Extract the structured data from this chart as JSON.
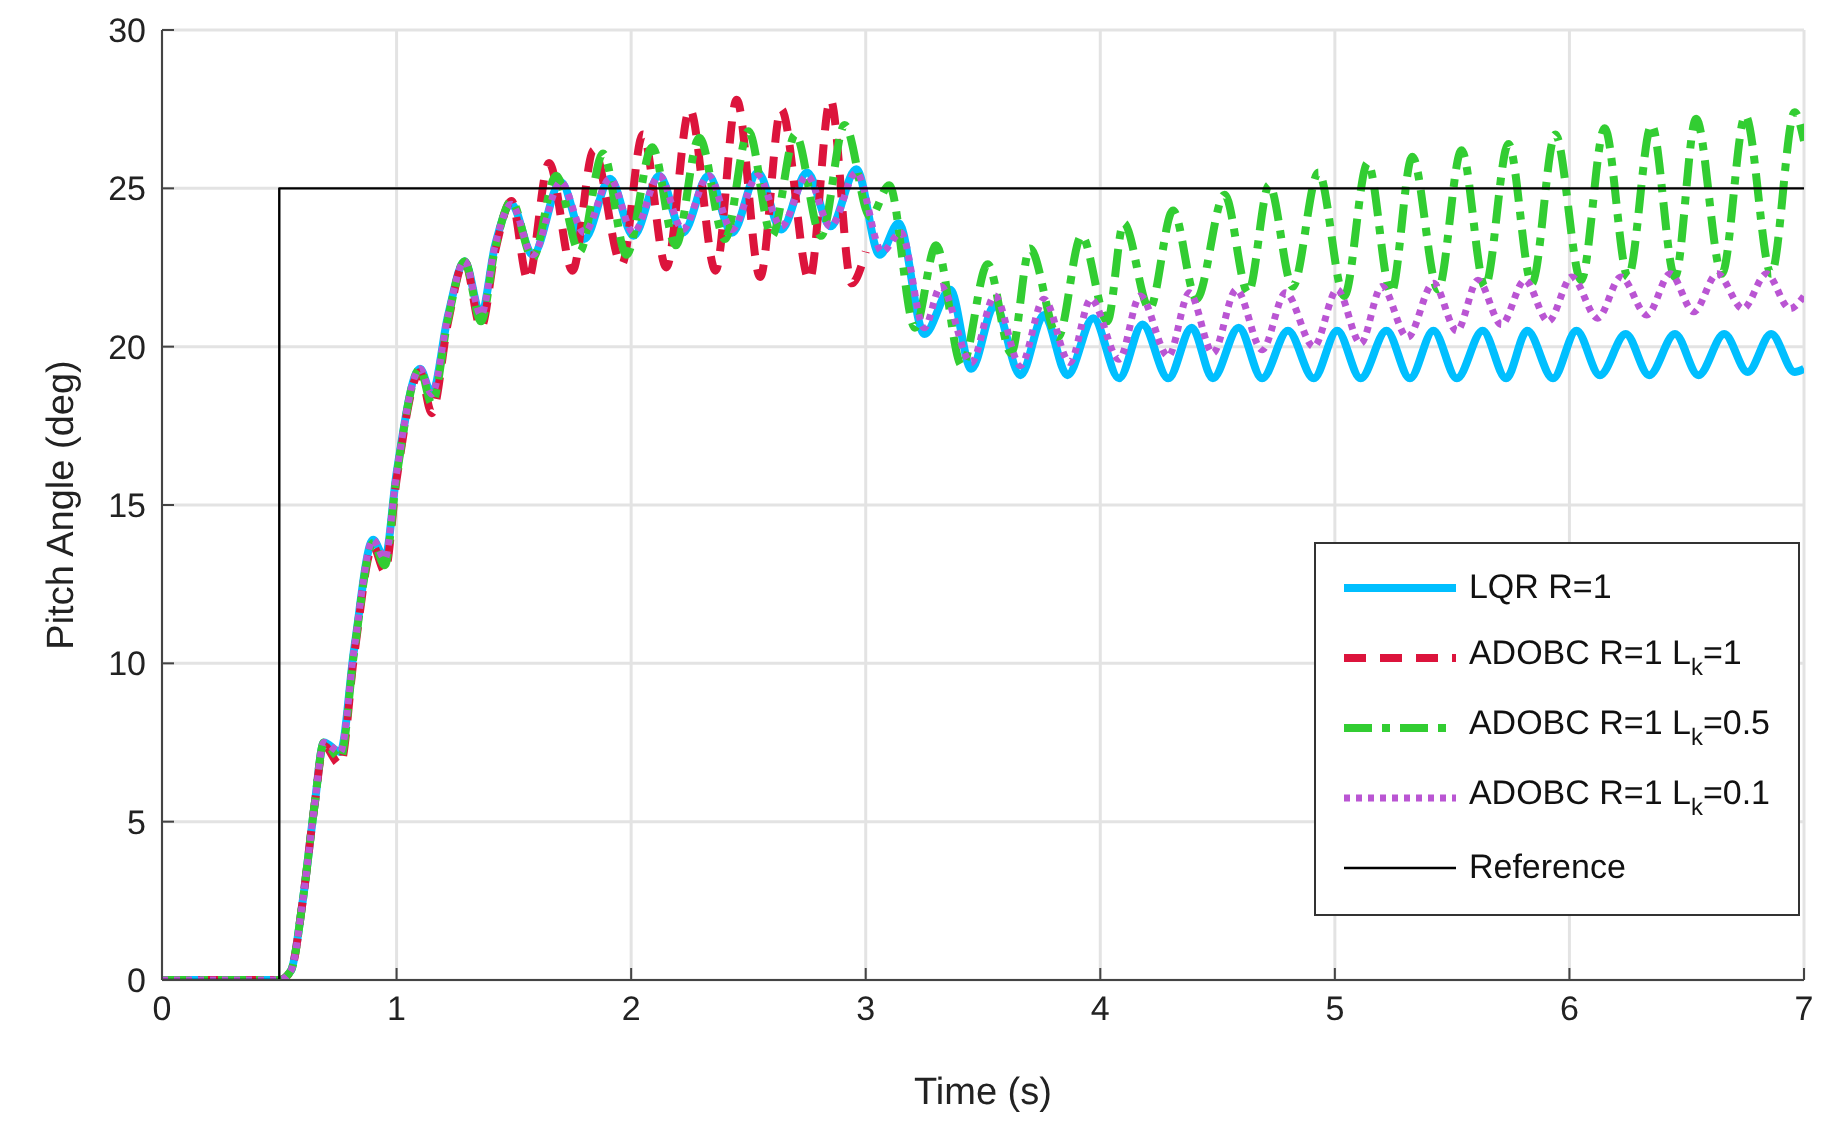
{
  "chart_data": {
    "type": "line",
    "xlabel": "Time (s)",
    "ylabel": "Pitch Angle (deg)",
    "xlim": [
      0,
      7
    ],
    "ylim": [
      0,
      30
    ],
    "xticks": [
      0,
      1,
      2,
      3,
      4,
      5,
      6,
      7
    ],
    "yticks": [
      0,
      5,
      10,
      15,
      20,
      25,
      30
    ],
    "grid": true,
    "legend": "bottom right",
    "series": [
      {
        "name": "LQR R=1",
        "color": "#00bfff",
        "line_style": "solid",
        "x": [
          0,
          0.5,
          0.55,
          0.6,
          0.65,
          0.69,
          0.76,
          0.82,
          0.9,
          0.95,
          1.0,
          1.1,
          1.15,
          1.22,
          1.29,
          1.36,
          1.42,
          1.49,
          1.58,
          1.7,
          1.8,
          1.91,
          2.01,
          2.12,
          2.22,
          2.33,
          2.43,
          2.54,
          2.64,
          2.75,
          2.85,
          2.96,
          3.06,
          3.14,
          3.25,
          3.36,
          3.45,
          3.55,
          3.66,
          3.76,
          3.86,
          3.97,
          4.08,
          4.18,
          4.29,
          4.39,
          4.48,
          4.59,
          4.69,
          4.8,
          4.91,
          5.01,
          5.11,
          5.22,
          5.32,
          5.42,
          5.52,
          5.63,
          5.73,
          5.82,
          5.93,
          6.03,
          6.13,
          6.24,
          6.34,
          6.45,
          6.55,
          6.66,
          6.76,
          6.86,
          6.96,
          7.0
        ],
        "values": [
          0,
          0,
          0.3,
          2.5,
          5.5,
          7.5,
          7.2,
          10.5,
          13.9,
          13.3,
          16.0,
          19.3,
          18.5,
          21.0,
          22.7,
          21.0,
          23.2,
          24.5,
          22.9,
          25.2,
          23.4,
          25.3,
          23.5,
          25.4,
          23.6,
          25.4,
          23.6,
          25.5,
          23.7,
          25.5,
          23.8,
          25.6,
          22.9,
          23.9,
          20.4,
          21.8,
          19.3,
          21.3,
          19.1,
          21.0,
          19.1,
          20.9,
          19.0,
          20.7,
          19.0,
          20.6,
          19.0,
          20.6,
          19.0,
          20.5,
          19.0,
          20.5,
          19.0,
          20.5,
          19.0,
          20.5,
          19.0,
          20.5,
          19.0,
          20.5,
          19.0,
          20.5,
          19.1,
          20.4,
          19.1,
          20.4,
          19.1,
          20.4,
          19.2,
          20.4,
          19.2,
          19.3
        ]
      },
      {
        "name": "ADOBC R=1 L$_{k}$=1",
        "color": "#dc143c",
        "line_style": "dashed",
        "x": [
          0,
          0.5,
          0.55,
          0.6,
          0.65,
          0.69,
          0.76,
          0.82,
          0.9,
          0.95,
          1.0,
          1.1,
          1.15,
          1.22,
          1.29,
          1.36,
          1.42,
          1.49,
          1.56,
          1.65,
          1.75,
          1.84,
          1.96,
          2.05,
          2.15,
          2.25,
          2.36,
          2.45,
          2.55,
          2.64,
          2.76,
          2.85,
          2.94,
          3.0
        ],
        "values": [
          0,
          0,
          0.3,
          2.5,
          5.5,
          7.4,
          6.8,
          10.3,
          13.7,
          12.9,
          15.8,
          19.2,
          17.9,
          20.8,
          22.7,
          20.6,
          23.0,
          24.6,
          22.1,
          25.8,
          22.4,
          26.2,
          22.6,
          26.7,
          22.5,
          27.5,
          22.4,
          27.8,
          22.2,
          27.5,
          22.1,
          27.8,
          22.0,
          23.0
        ]
      },
      {
        "name": "ADOBC R=1 L$_{k}$=0.5",
        "color": "#32cd32",
        "line_style": "dashdot",
        "x": [
          0,
          0.5,
          0.55,
          0.6,
          0.65,
          0.69,
          0.76,
          0.82,
          0.9,
          0.95,
          1.0,
          1.1,
          1.15,
          1.22,
          1.29,
          1.36,
          1.42,
          1.49,
          1.58,
          1.68,
          1.78,
          1.88,
          1.98,
          2.09,
          2.19,
          2.29,
          2.4,
          2.5,
          2.6,
          2.7,
          2.81,
          2.91,
          3.02,
          3.1,
          3.21,
          3.3,
          3.41,
          3.52,
          3.62,
          3.7,
          3.82,
          3.92,
          4.03,
          4.1,
          4.21,
          4.31,
          4.41,
          4.53,
          4.63,
          4.72,
          4.82,
          4.93,
          5.04,
          5.14,
          5.24,
          5.33,
          5.44,
          5.54,
          5.64,
          5.74,
          5.84,
          5.94,
          6.05,
          6.15,
          6.25,
          6.35,
          6.45,
          6.54,
          6.65,
          6.75,
          6.86,
          6.96,
          7.0
        ],
        "values": [
          0,
          0,
          0.3,
          2.5,
          5.5,
          7.5,
          7.0,
          10.4,
          13.8,
          13.1,
          15.9,
          19.3,
          18.2,
          20.9,
          22.7,
          20.8,
          23.1,
          24.6,
          22.8,
          25.4,
          23.0,
          26.1,
          22.9,
          26.3,
          23.2,
          26.6,
          23.4,
          26.8,
          23.5,
          26.7,
          23.5,
          27.0,
          24.1,
          25.1,
          20.6,
          23.2,
          19.4,
          22.6,
          19.8,
          23.1,
          20.3,
          23.5,
          20.8,
          23.9,
          21.2,
          24.3,
          21.5,
          24.8,
          21.7,
          25.1,
          21.9,
          25.5,
          21.6,
          25.8,
          21.7,
          26.0,
          21.8,
          26.2,
          21.9,
          26.4,
          22.0,
          26.7,
          22.1,
          26.9,
          22.2,
          27.0,
          22.2,
          27.2,
          22.3,
          27.3,
          22.3,
          27.4,
          26.5
        ]
      },
      {
        "name": "ADOBC R=1 L$_{k}$=0.1",
        "color": "#ba55d3",
        "line_style": "dotted",
        "x": [
          0,
          0.5,
          0.55,
          0.6,
          0.65,
          0.69,
          0.76,
          0.82,
          0.9,
          0.95,
          1.0,
          1.1,
          1.15,
          1.22,
          1.29,
          1.36,
          1.42,
          1.49,
          1.58,
          1.7,
          1.8,
          1.91,
          2.01,
          2.12,
          2.22,
          2.33,
          2.43,
          2.54,
          2.64,
          2.75,
          2.85,
          2.96,
          3.07,
          3.15,
          3.25,
          3.32,
          3.45,
          3.55,
          3.66,
          3.76,
          3.87,
          3.96,
          4.08,
          4.17,
          4.29,
          4.38,
          4.48,
          4.58,
          4.69,
          4.79,
          4.91,
          5.01,
          5.11,
          5.2,
          5.31,
          5.42,
          5.52,
          5.61,
          5.71,
          5.81,
          5.91,
          6.01,
          6.12,
          6.22,
          6.33,
          6.43,
          6.53,
          6.63,
          6.74,
          6.84,
          6.94,
          7.0
        ],
        "values": [
          0,
          0,
          0.3,
          2.5,
          5.5,
          7.5,
          7.2,
          10.5,
          13.9,
          13.3,
          16.0,
          19.3,
          18.5,
          21.0,
          22.7,
          21.0,
          23.2,
          24.5,
          22.9,
          25.2,
          23.6,
          25.3,
          23.6,
          25.4,
          23.7,
          25.4,
          23.7,
          25.4,
          23.8,
          25.4,
          23.8,
          25.5,
          23.0,
          23.6,
          20.6,
          21.9,
          19.5,
          21.6,
          19.4,
          21.5,
          19.5,
          21.5,
          19.6,
          21.6,
          19.7,
          21.7,
          19.8,
          21.8,
          19.9,
          21.7,
          20.0,
          21.8,
          20.1,
          21.9,
          20.3,
          22.0,
          20.5,
          22.1,
          20.7,
          22.1,
          20.8,
          22.2,
          20.9,
          22.2,
          21.0,
          22.3,
          21.1,
          22.3,
          21.2,
          22.3,
          21.2,
          21.6
        ]
      },
      {
        "name": "Reference",
        "color": "#000000",
        "line_style": "solid",
        "x": [
          0,
          0.5,
          0.5,
          7
        ],
        "values": [
          0,
          0,
          25,
          25
        ]
      }
    ]
  }
}
